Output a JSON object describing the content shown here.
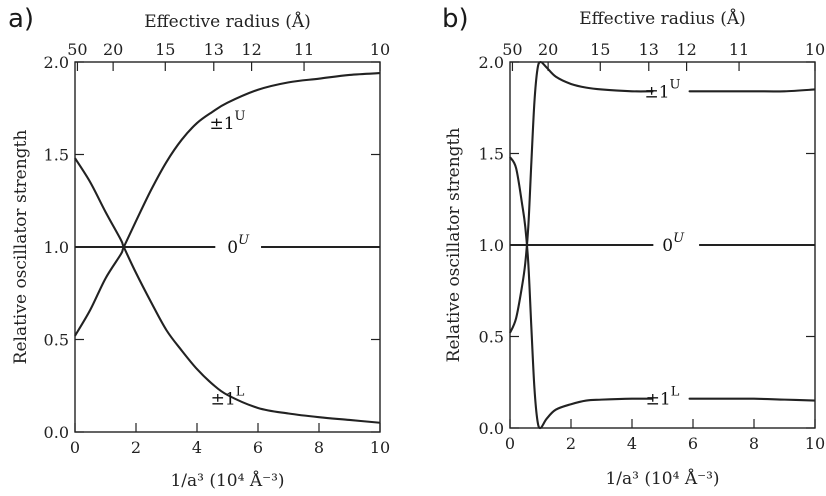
{
  "chart_data": [
    {
      "panel": "a)",
      "type": "line",
      "xlabel": "1/a³ (10⁴ Å⁻³)",
      "ylabel": "Relative oscillator strength",
      "x2label": "Effective radius (Å)",
      "xlim": [
        0,
        10
      ],
      "ylim": [
        0,
        2.0
      ],
      "x_ticks": [
        0,
        2,
        4,
        6,
        8,
        10
      ],
      "y_ticks": [
        "0.0",
        "0.5",
        "1.0",
        "1.5",
        "2.0"
      ],
      "top_ticks": [
        {
          "label": "50",
          "x": 0.08
        },
        {
          "label": "20",
          "x": 1.25
        },
        {
          "label": "15",
          "x": 2.96
        },
        {
          "label": "13",
          "x": 4.55
        },
        {
          "label": "12",
          "x": 5.79
        },
        {
          "label": "11",
          "x": 7.51
        },
        {
          "label": "10",
          "x": 10.0
        }
      ],
      "grid": false,
      "series": [
        {
          "name": "±1U",
          "label_sup": "U",
          "label_x": 5.0,
          "label_y": 1.67,
          "x": [
            0,
            0.5,
            1.0,
            1.5,
            1.6,
            2.0,
            2.5,
            3.0,
            3.5,
            4.0,
            4.5,
            5.0,
            6.0,
            7.0,
            8.0,
            9.0,
            10.0
          ],
          "values": [
            0.52,
            0.66,
            0.83,
            0.96,
            1.0,
            1.14,
            1.31,
            1.46,
            1.58,
            1.67,
            1.73,
            1.78,
            1.85,
            1.89,
            1.91,
            1.93,
            1.94
          ]
        },
        {
          "name": "0U",
          "label_sup": "U",
          "label_x": 5.35,
          "label_y": 1.0,
          "x": [
            0,
            4.6,
            6.1,
            10.0
          ],
          "values": [
            1.0,
            1.0,
            1.0,
            1.0
          ],
          "gap": [
            4.6,
            6.1
          ]
        },
        {
          "name": "±1L",
          "label_sup": "L",
          "label_x": 5.0,
          "label_y": 0.18,
          "x": [
            0,
            0.5,
            1.0,
            1.5,
            1.6,
            2.0,
            2.5,
            3.0,
            3.5,
            4.0,
            4.5,
            5.0,
            6.0,
            7.0,
            8.0,
            9.0,
            10.0
          ],
          "values": [
            1.48,
            1.35,
            1.19,
            1.04,
            1.0,
            0.86,
            0.7,
            0.55,
            0.44,
            0.34,
            0.26,
            0.2,
            0.13,
            0.1,
            0.08,
            0.065,
            0.05
          ]
        }
      ]
    },
    {
      "panel": "b)",
      "type": "line",
      "xlabel": "1/a³ (10⁴ Å⁻³)",
      "ylabel": "Relative oscillator strength",
      "x2label": "Effective radius (Å)",
      "xlim": [
        0,
        10
      ],
      "ylim": [
        0,
        2.0
      ],
      "x_ticks": [
        0,
        2,
        4,
        6,
        8,
        10
      ],
      "y_ticks": [
        "0.0",
        "0.5",
        "1.0",
        "1.5",
        "2.0"
      ],
      "top_ticks": [
        {
          "label": "50",
          "x": 0.08
        },
        {
          "label": "20",
          "x": 1.25
        },
        {
          "label": "15",
          "x": 2.96
        },
        {
          "label": "13",
          "x": 4.55
        },
        {
          "label": "12",
          "x": 5.79
        },
        {
          "label": "11",
          "x": 7.51
        },
        {
          "label": "10",
          "x": 10.0
        }
      ],
      "grid": false,
      "series": [
        {
          "name": "±1U",
          "label_sup": "U",
          "label_x": 5.0,
          "label_y": 1.84,
          "x": [
            0,
            0.2,
            0.4,
            0.5,
            0.6,
            0.7,
            0.8,
            0.9,
            1.0,
            1.2,
            1.5,
            2.0,
            2.5,
            3.0,
            4.0,
            5.0,
            6.0,
            7.0,
            8.0,
            9.0,
            10.0
          ],
          "values": [
            0.52,
            0.6,
            0.78,
            0.9,
            1.1,
            1.45,
            1.78,
            1.96,
            2.0,
            1.97,
            1.92,
            1.88,
            1.86,
            1.85,
            1.84,
            1.84,
            1.84,
            1.84,
            1.84,
            1.84,
            1.85
          ],
          "gap": [
            4.7,
            5.9
          ]
        },
        {
          "name": "0U",
          "label_sup": "U",
          "label_x": 5.35,
          "label_y": 1.0,
          "x": [
            0,
            4.7,
            6.2,
            10.0
          ],
          "values": [
            1.0,
            1.0,
            1.0,
            1.0
          ],
          "gap": [
            4.7,
            6.2
          ]
        },
        {
          "name": "±1L",
          "label_sup": "L",
          "label_x": 5.0,
          "label_y": 0.16,
          "x": [
            0,
            0.2,
            0.4,
            0.5,
            0.6,
            0.7,
            0.8,
            0.9,
            1.0,
            1.2,
            1.5,
            2.0,
            2.5,
            3.0,
            4.0,
            5.0,
            6.0,
            7.0,
            8.0,
            9.0,
            10.0
          ],
          "values": [
            1.48,
            1.42,
            1.22,
            1.1,
            0.9,
            0.55,
            0.22,
            0.04,
            0.0,
            0.05,
            0.1,
            0.13,
            0.15,
            0.155,
            0.16,
            0.16,
            0.16,
            0.16,
            0.16,
            0.155,
            0.15
          ],
          "gap": [
            4.7,
            5.9
          ]
        }
      ]
    }
  ]
}
